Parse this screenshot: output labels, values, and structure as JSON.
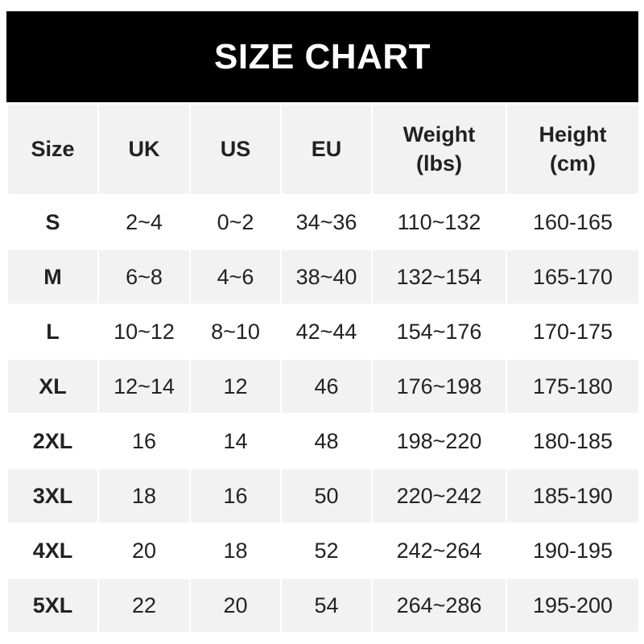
{
  "title": "SIZE CHART",
  "headers": [
    "Size",
    "UK",
    "US",
    "EU",
    "Weight\n(lbs)",
    "Height\n(cm)"
  ],
  "rows": [
    [
      "S",
      "2~4",
      "0~2",
      "34~36",
      "110~132",
      "160-165"
    ],
    [
      "M",
      "6~8",
      "4~6",
      "38~40",
      "132~154",
      "165-170"
    ],
    [
      "L",
      "10~12",
      "8~10",
      "42~44",
      "154~176",
      "170-175"
    ],
    [
      "XL",
      "12~14",
      "12",
      "46",
      "176~198",
      "175-180"
    ],
    [
      "2XL",
      "16",
      "14",
      "48",
      "198~220",
      "180-185"
    ],
    [
      "3XL",
      "18",
      "16",
      "50",
      "220~242",
      "185-190"
    ],
    [
      "4XL",
      "20",
      "18",
      "52",
      "242~264",
      "190-195"
    ],
    [
      "5XL",
      "22",
      "20",
      "54",
      "264~286",
      "195-200"
    ]
  ],
  "colors": {
    "title_bg": "#000000",
    "title_text": "#ffffff",
    "stripe": "#f2f2f2"
  }
}
